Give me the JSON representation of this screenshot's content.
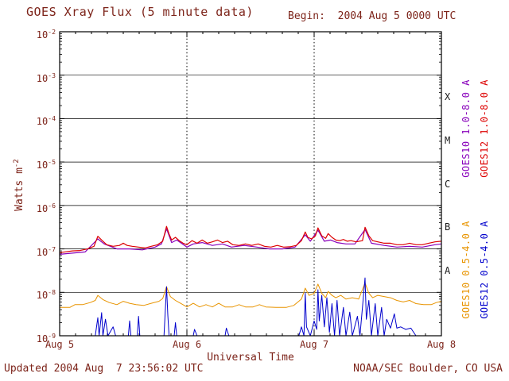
{
  "header": {
    "title": "GOES Xray Flux (5 minute data)",
    "begin": "Begin:  2004 Aug 5 0000 UTC"
  },
  "footer": {
    "updated": "Updated 2004 Aug  7 23:56:02 UTC",
    "source": "NOAA/SEC Boulder, CO USA"
  },
  "labels": {
    "ylabel_base": "Watts m",
    "ylabel_sup": "-2"
  },
  "colors": {
    "text": "#7d241a",
    "axis": "#000000",
    "goes10_long": "#8800bb",
    "goes12_long": "#dd0000",
    "goes10_short": "#e89400",
    "goes12_short": "#0000cc"
  },
  "chart_data": {
    "type": "line",
    "title": "GOES Xray Flux (5 minute data)",
    "xlabel": "Universal Time",
    "ylabel": "Watts m^-2",
    "x_unit_days_from": "2004 Aug 5 0000 UTC",
    "xlim": [
      0,
      3
    ],
    "x_tick_days": [
      0,
      1,
      2,
      3
    ],
    "x_tick_labels": [
      "Aug 5",
      "Aug 6",
      "Aug 7",
      "Aug 8"
    ],
    "y_scale": "log",
    "ylim": [
      1e-09,
      0.01
    ],
    "y_tick_exponents": [
      -2,
      -3,
      -4,
      -5,
      -6,
      -7,
      -8,
      -9
    ],
    "flare_classes": [
      {
        "label": "X",
        "exponent": -3.5
      },
      {
        "label": "M",
        "exponent": -4.5
      },
      {
        "label": "C",
        "exponent": -5.5
      },
      {
        "label": "B",
        "exponent": -6.5
      },
      {
        "label": "A",
        "exponent": -7.5
      }
    ],
    "legend": [
      {
        "label": "GOES10 1.0-8.0 A",
        "color": "#8800bb",
        "column": "inner",
        "band": "top"
      },
      {
        "label": "GOES12 1.0-8.0 A",
        "color": "#dd0000",
        "column": "outer",
        "band": "top"
      },
      {
        "label": "GOES10 0.5-4.0 A",
        "color": "#e89400",
        "column": "inner",
        "band": "bottom"
      },
      {
        "label": "GOES12 0.5-4.0 A",
        "color": "#0000cc",
        "column": "outer",
        "band": "bottom"
      }
    ],
    "series": [
      {
        "name": "GOES10 1.0-8.0 A",
        "slug": "goes10-long",
        "color": "#8800bb",
        "width": 1.2,
        "points": [
          [
            0.0,
            7.5e-08
          ],
          [
            0.1,
            8e-08
          ],
          [
            0.2,
            8.5e-08
          ],
          [
            0.3,
            1.7e-07
          ],
          [
            0.35,
            1.3e-07
          ],
          [
            0.45,
            1e-07
          ],
          [
            0.55,
            1e-07
          ],
          [
            0.65,
            9.5e-08
          ],
          [
            0.75,
            1.1e-07
          ],
          [
            0.8,
            1.3e-07
          ],
          [
            0.84,
            2.9e-07
          ],
          [
            0.88,
            1.4e-07
          ],
          [
            0.92,
            1.6e-07
          ],
          [
            1.0,
            1.1e-07
          ],
          [
            1.05,
            1.3e-07
          ],
          [
            1.12,
            1.4e-07
          ],
          [
            1.2,
            1.2e-07
          ],
          [
            1.28,
            1.3e-07
          ],
          [
            1.35,
            1.1e-07
          ],
          [
            1.45,
            1.2e-07
          ],
          [
            1.55,
            1.1e-07
          ],
          [
            1.65,
            1e-07
          ],
          [
            1.75,
            1e-07
          ],
          [
            1.85,
            1.1e-07
          ],
          [
            1.93,
            2.1e-07
          ],
          [
            1.97,
            1.5e-07
          ],
          [
            2.03,
            2.7e-07
          ],
          [
            2.08,
            1.5e-07
          ],
          [
            2.13,
            1.6e-07
          ],
          [
            2.18,
            1.4e-07
          ],
          [
            2.25,
            1.3e-07
          ],
          [
            2.32,
            1.3e-07
          ],
          [
            2.4,
            2.8e-07
          ],
          [
            2.45,
            1.35e-07
          ],
          [
            2.55,
            1.2e-07
          ],
          [
            2.65,
            1.1e-07
          ],
          [
            2.75,
            1.15e-07
          ],
          [
            2.85,
            1.1e-07
          ],
          [
            2.95,
            1.25e-07
          ],
          [
            3.0,
            1.3e-07
          ]
        ]
      },
      {
        "name": "GOES12 1.0-8.0 A",
        "slug": "goes12-long",
        "color": "#dd0000",
        "width": 1.2,
        "points": [
          [
            0.0,
            8.2e-08
          ],
          [
            0.05,
            8.6e-08
          ],
          [
            0.1,
            9e-08
          ],
          [
            0.16,
            9.2e-08
          ],
          [
            0.22,
            1e-07
          ],
          [
            0.27,
            1.15e-07
          ],
          [
            0.3,
            1.95e-07
          ],
          [
            0.33,
            1.6e-07
          ],
          [
            0.37,
            1.25e-07
          ],
          [
            0.42,
            1.15e-07
          ],
          [
            0.47,
            1.2e-07
          ],
          [
            0.5,
            1.35e-07
          ],
          [
            0.53,
            1.2e-07
          ],
          [
            0.57,
            1.15e-07
          ],
          [
            0.62,
            1.1e-07
          ],
          [
            0.67,
            1.05e-07
          ],
          [
            0.72,
            1.15e-07
          ],
          [
            0.77,
            1.25e-07
          ],
          [
            0.81,
            1.5e-07
          ],
          [
            0.84,
            3.3e-07
          ],
          [
            0.86,
            2.2e-07
          ],
          [
            0.88,
            1.6e-07
          ],
          [
            0.91,
            1.85e-07
          ],
          [
            0.94,
            1.55e-07
          ],
          [
            0.97,
            1.35e-07
          ],
          [
            1.0,
            1.25e-07
          ],
          [
            1.04,
            1.55e-07
          ],
          [
            1.08,
            1.35e-07
          ],
          [
            1.12,
            1.6e-07
          ],
          [
            1.16,
            1.35e-07
          ],
          [
            1.2,
            1.45e-07
          ],
          [
            1.24,
            1.6e-07
          ],
          [
            1.28,
            1.4e-07
          ],
          [
            1.32,
            1.5e-07
          ],
          [
            1.36,
            1.25e-07
          ],
          [
            1.41,
            1.2e-07
          ],
          [
            1.46,
            1.3e-07
          ],
          [
            1.51,
            1.2e-07
          ],
          [
            1.56,
            1.3e-07
          ],
          [
            1.61,
            1.15e-07
          ],
          [
            1.66,
            1.1e-07
          ],
          [
            1.71,
            1.2e-07
          ],
          [
            1.76,
            1.1e-07
          ],
          [
            1.81,
            1.12e-07
          ],
          [
            1.86,
            1.2e-07
          ],
          [
            1.9,
            1.55e-07
          ],
          [
            1.93,
            2.45e-07
          ],
          [
            1.95,
            1.85e-07
          ],
          [
            1.98,
            1.7e-07
          ],
          [
            2.01,
            2e-07
          ],
          [
            2.03,
            3.05e-07
          ],
          [
            2.06,
            2e-07
          ],
          [
            2.09,
            1.75e-07
          ],
          [
            2.11,
            2.25e-07
          ],
          [
            2.14,
            1.85e-07
          ],
          [
            2.17,
            1.6e-07
          ],
          [
            2.2,
            1.55e-07
          ],
          [
            2.23,
            1.65e-07
          ],
          [
            2.26,
            1.5e-07
          ],
          [
            2.29,
            1.55e-07
          ],
          [
            2.33,
            1.45e-07
          ],
          [
            2.38,
            1.55e-07
          ],
          [
            2.4,
            3.15e-07
          ],
          [
            2.43,
            2e-07
          ],
          [
            2.46,
            1.55e-07
          ],
          [
            2.5,
            1.45e-07
          ],
          [
            2.55,
            1.35e-07
          ],
          [
            2.6,
            1.35e-07
          ],
          [
            2.65,
            1.25e-07
          ],
          [
            2.7,
            1.25e-07
          ],
          [
            2.75,
            1.35e-07
          ],
          [
            2.8,
            1.25e-07
          ],
          [
            2.85,
            1.25e-07
          ],
          [
            2.9,
            1.35e-07
          ],
          [
            2.95,
            1.45e-07
          ],
          [
            3.0,
            1.5e-07
          ]
        ]
      },
      {
        "name": "GOES10 0.5-4.0 A",
        "slug": "goes10-short",
        "color": "#e89400",
        "width": 1,
        "points": [
          [
            0.0,
            4.5e-09
          ],
          [
            0.08,
            4.5e-09
          ],
          [
            0.12,
            5.2e-09
          ],
          [
            0.18,
            5.2e-09
          ],
          [
            0.24,
            5.8e-09
          ],
          [
            0.28,
            6.5e-09
          ],
          [
            0.3,
            8.5e-09
          ],
          [
            0.34,
            6.8e-09
          ],
          [
            0.39,
            5.8e-09
          ],
          [
            0.45,
            5.2e-09
          ],
          [
            0.5,
            6.2e-09
          ],
          [
            0.55,
            5.6e-09
          ],
          [
            0.6,
            5.2e-09
          ],
          [
            0.66,
            5e-09
          ],
          [
            0.72,
            5.6e-09
          ],
          [
            0.78,
            6.2e-09
          ],
          [
            0.81,
            7.2e-09
          ],
          [
            0.84,
            1.35e-08
          ],
          [
            0.87,
            8e-09
          ],
          [
            0.91,
            6.5e-09
          ],
          [
            0.95,
            5.6e-09
          ],
          [
            1.0,
            4.6e-09
          ],
          [
            1.05,
            5.6e-09
          ],
          [
            1.1,
            4.6e-09
          ],
          [
            1.15,
            5.2e-09
          ],
          [
            1.2,
            4.6e-09
          ],
          [
            1.25,
            5.6e-09
          ],
          [
            1.3,
            4.6e-09
          ],
          [
            1.36,
            4.6e-09
          ],
          [
            1.41,
            5.2e-09
          ],
          [
            1.46,
            4.6e-09
          ],
          [
            1.52,
            4.6e-09
          ],
          [
            1.57,
            5.2e-09
          ],
          [
            1.62,
            4.6e-09
          ],
          [
            1.7,
            4.5e-09
          ],
          [
            1.78,
            4.5e-09
          ],
          [
            1.84,
            5e-09
          ],
          [
            1.9,
            7e-09
          ],
          [
            1.93,
            1.25e-08
          ],
          [
            1.96,
            8.5e-09
          ],
          [
            2.0,
            9.5e-09
          ],
          [
            2.03,
            1.55e-08
          ],
          [
            2.06,
            9.5e-09
          ],
          [
            2.09,
            7.5e-09
          ],
          [
            2.11,
            1.05e-08
          ],
          [
            2.14,
            8.5e-09
          ],
          [
            2.17,
            7.5e-09
          ],
          [
            2.21,
            8.5e-09
          ],
          [
            2.25,
            7e-09
          ],
          [
            2.3,
            7.5e-09
          ],
          [
            2.35,
            7e-09
          ],
          [
            2.4,
            1.65e-08
          ],
          [
            2.43,
            9.5e-09
          ],
          [
            2.46,
            7.5e-09
          ],
          [
            2.5,
            8.5e-09
          ],
          [
            2.55,
            8e-09
          ],
          [
            2.6,
            7.5e-09
          ],
          [
            2.65,
            6.5e-09
          ],
          [
            2.7,
            6e-09
          ],
          [
            2.75,
            6.5e-09
          ],
          [
            2.8,
            5.5e-09
          ],
          [
            2.86,
            5.2e-09
          ],
          [
            2.92,
            5.2e-09
          ],
          [
            2.96,
            5.8e-09
          ],
          [
            3.0,
            6.2e-09
          ]
        ]
      },
      {
        "name": "GOES12 0.5-4.0 A",
        "slug": "goes12-short",
        "color": "#0000cc",
        "width": 1,
        "points": [
          [
            0.0,
            9e-10
          ],
          [
            0.28,
            9e-10
          ],
          [
            0.3,
            2.6e-09
          ],
          [
            0.31,
            9e-10
          ],
          [
            0.33,
            3.4e-09
          ],
          [
            0.34,
            9e-10
          ],
          [
            0.36,
            2.4e-09
          ],
          [
            0.38,
            9e-10
          ],
          [
            0.42,
            1.6e-09
          ],
          [
            0.44,
            9e-10
          ],
          [
            0.54,
            9e-10
          ],
          [
            0.55,
            2.2e-09
          ],
          [
            0.56,
            9e-10
          ],
          [
            0.61,
            9e-10
          ],
          [
            0.62,
            2.8e-09
          ],
          [
            0.63,
            9e-10
          ],
          [
            0.7,
            9e-10
          ],
          [
            0.82,
            9e-10
          ],
          [
            0.84,
            1.35e-08
          ],
          [
            0.85,
            3e-09
          ],
          [
            0.86,
            9e-10
          ],
          [
            0.9,
            9e-10
          ],
          [
            0.91,
            2e-09
          ],
          [
            0.92,
            9e-10
          ],
          [
            1.05,
            9e-10
          ],
          [
            1.06,
            1.4e-09
          ],
          [
            1.08,
            9e-10
          ],
          [
            1.3,
            9e-10
          ],
          [
            1.31,
            1.5e-09
          ],
          [
            1.33,
            9e-10
          ],
          [
            1.88,
            9e-10
          ],
          [
            1.9,
            1.6e-09
          ],
          [
            1.92,
            9e-10
          ],
          [
            1.93,
            9.5e-09
          ],
          [
            1.94,
            1.6e-09
          ],
          [
            1.97,
            9e-10
          ],
          [
            2.0,
            2.2e-09
          ],
          [
            2.02,
            1.4e-09
          ],
          [
            2.03,
            1.15e-08
          ],
          [
            2.04,
            2.2e-09
          ],
          [
            2.06,
            8.5e-09
          ],
          [
            2.08,
            1.6e-09
          ],
          [
            2.1,
            7.5e-09
          ],
          [
            2.12,
            1.2e-09
          ],
          [
            2.14,
            5.5e-09
          ],
          [
            2.16,
            9e-10
          ],
          [
            2.18,
            6.5e-09
          ],
          [
            2.2,
            9e-10
          ],
          [
            2.23,
            4.5e-09
          ],
          [
            2.25,
            9e-10
          ],
          [
            2.28,
            3.5e-09
          ],
          [
            2.3,
            9e-10
          ],
          [
            2.34,
            2.8e-09
          ],
          [
            2.36,
            9e-10
          ],
          [
            2.4,
            2.15e-08
          ],
          [
            2.41,
            2.4e-09
          ],
          [
            2.43,
            6.5e-09
          ],
          [
            2.45,
            9e-10
          ],
          [
            2.48,
            5.5e-09
          ],
          [
            2.5,
            9e-10
          ],
          [
            2.53,
            4.5e-09
          ],
          [
            2.55,
            1e-09
          ],
          [
            2.57,
            2.4e-09
          ],
          [
            2.6,
            1.5e-09
          ],
          [
            2.63,
            3.2e-09
          ],
          [
            2.65,
            1.5e-09
          ],
          [
            2.68,
            1.6e-09
          ],
          [
            2.72,
            1.4e-09
          ],
          [
            2.76,
            1.5e-09
          ],
          [
            2.8,
            9e-10
          ],
          [
            3.0,
            9e-10
          ]
        ]
      }
    ]
  }
}
